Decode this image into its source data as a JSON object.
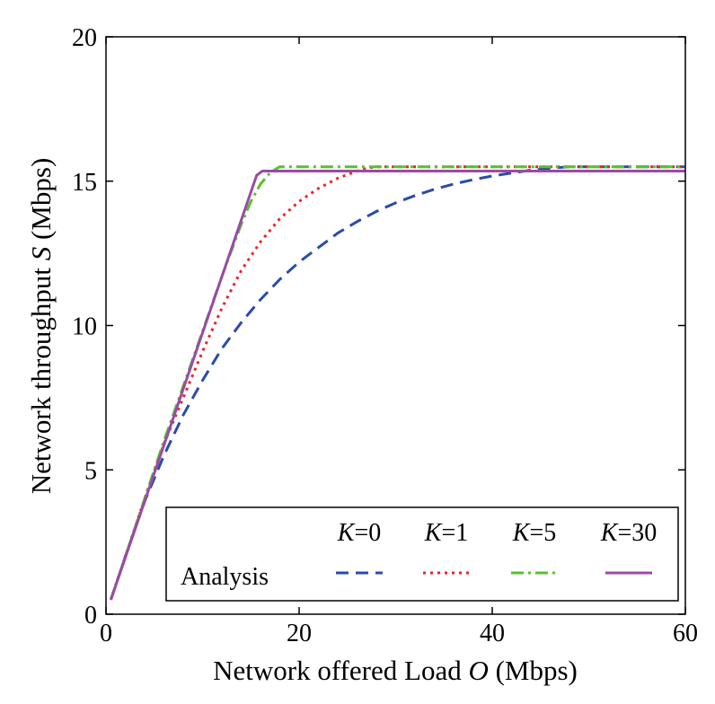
{
  "chart_data": {
    "type": "line",
    "xlabel": "Network offered Load O (Mbps)",
    "xlabel_parts": {
      "pre": "Network offered Load ",
      "var": "O",
      "post": " (Mbps)"
    },
    "ylabel": "Network throughput S (Mbps)",
    "ylabel_parts": {
      "pre": "Network throughput ",
      "var": "S",
      "post": " (Mbps)"
    },
    "xlim": [
      0,
      60
    ],
    "ylim": [
      0,
      20
    ],
    "xticks": [
      0,
      20,
      40,
      60
    ],
    "yticks": [
      0,
      5,
      10,
      15,
      20
    ],
    "grid": false,
    "legend": {
      "placement": "bottom-right",
      "row_label": "Analysis",
      "var": "K"
    },
    "series": [
      {
        "name": "K=0",
        "k": "0",
        "color": "#2a4bab",
        "style": "dashed",
        "x": [
          0.5,
          2,
          4,
          6,
          8,
          10,
          12,
          14,
          16,
          18,
          20,
          22,
          24,
          26,
          28,
          30,
          32,
          34,
          36,
          38,
          40,
          42,
          44,
          46,
          48,
          50,
          55,
          60
        ],
        "y": [
          0.5,
          2.0,
          3.9,
          5.5,
          6.9,
          8.1,
          9.2,
          10.1,
          10.9,
          11.6,
          12.2,
          12.7,
          13.2,
          13.6,
          13.95,
          14.25,
          14.5,
          14.72,
          14.9,
          15.05,
          15.18,
          15.28,
          15.38,
          15.45,
          15.5,
          15.5,
          15.5,
          15.5
        ]
      },
      {
        "name": "K=1",
        "k": "1",
        "color": "#e8242a",
        "style": "dotted",
        "x": [
          0.5,
          2,
          4,
          6,
          8,
          10,
          12,
          14,
          16,
          18,
          20,
          22,
          24,
          26,
          27,
          28,
          30,
          40,
          50,
          60
        ],
        "y": [
          0.5,
          2.0,
          4.0,
          5.9,
          7.5,
          9.1,
          10.6,
          11.9,
          12.9,
          13.7,
          14.3,
          14.75,
          15.1,
          15.35,
          15.45,
          15.5,
          15.5,
          15.5,
          15.5,
          15.5
        ]
      },
      {
        "name": "K=5",
        "k": "5",
        "color": "#58c12e",
        "style": "dashdot",
        "x": [
          0.5,
          2,
          4,
          6,
          8,
          10,
          12,
          14,
          15,
          16,
          17,
          18,
          20,
          30,
          40,
          50,
          60
        ],
        "y": [
          0.5,
          2.0,
          4.0,
          6.0,
          7.9,
          9.8,
          11.7,
          13.5,
          14.3,
          14.9,
          15.3,
          15.5,
          15.5,
          15.5,
          15.5,
          15.5,
          15.5
        ]
      },
      {
        "name": "K=30",
        "k": "30",
        "color": "#9a4aa6",
        "style": "solid",
        "x": [
          0.5,
          15.6,
          16.2,
          20,
          30,
          40,
          50,
          60
        ],
        "y": [
          0.5,
          15.2,
          15.35,
          15.35,
          15.35,
          15.35,
          15.35,
          15.35
        ]
      }
    ]
  }
}
